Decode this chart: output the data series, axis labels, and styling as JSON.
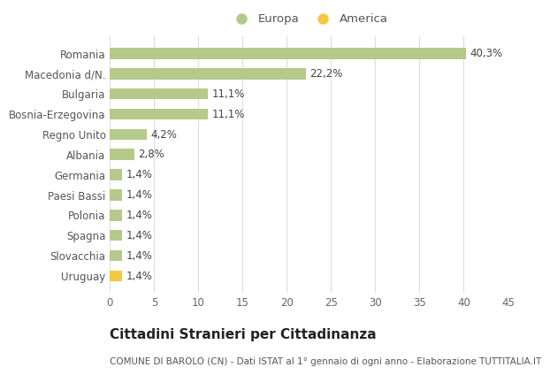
{
  "categories": [
    "Romania",
    "Macedonia d/N.",
    "Bulgaria",
    "Bosnia-Erzegovina",
    "Regno Unito",
    "Albania",
    "Germania",
    "Paesi Bassi",
    "Polonia",
    "Spagna",
    "Slovacchia",
    "Uruguay"
  ],
  "values": [
    40.3,
    22.2,
    11.1,
    11.1,
    4.2,
    2.8,
    1.4,
    1.4,
    1.4,
    1.4,
    1.4,
    1.4
  ],
  "labels": [
    "40,3%",
    "22,2%",
    "11,1%",
    "11,1%",
    "4,2%",
    "2,8%",
    "1,4%",
    "1,4%",
    "1,4%",
    "1,4%",
    "1,4%",
    "1,4%"
  ],
  "colors": [
    "#b5c98a",
    "#b5c98a",
    "#b5c98a",
    "#b5c98a",
    "#b5c98a",
    "#b5c98a",
    "#b5c98a",
    "#b5c98a",
    "#b5c98a",
    "#b5c98a",
    "#b5c98a",
    "#f5c842"
  ],
  "europa_color": "#b5c98a",
  "america_color": "#f5c842",
  "xlim": [
    0,
    45
  ],
  "xticks": [
    0,
    5,
    10,
    15,
    20,
    25,
    30,
    35,
    40,
    45
  ],
  "title": "Cittadini Stranieri per Cittadinanza",
  "subtitle": "COMUNE DI BAROLO (CN) - Dati ISTAT al 1° gennaio di ogni anno - Elaborazione TUTTITALIA.IT",
  "legend_europa": "Europa",
  "legend_america": "America",
  "background_color": "#ffffff",
  "grid_color": "#dddddd",
  "bar_height": 0.55,
  "label_fontsize": 8.5,
  "tick_fontsize": 8.5,
  "title_fontsize": 11,
  "subtitle_fontsize": 7.5
}
